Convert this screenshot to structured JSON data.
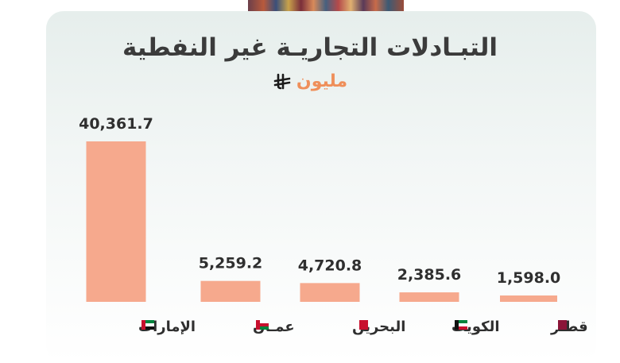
{
  "header": {
    "title": "التبـادلات التجاريـة غير النفطية",
    "unit": "مليون"
  },
  "icons": {
    "currency": "saudi-riyal-icon"
  },
  "colors": {
    "bar": "#f6a98d",
    "unit_text": "#ef8f5a",
    "title_text": "#3b3b3b"
  },
  "chart_data": {
    "type": "bar",
    "title": "التبـادلات التجاريـة غير النفطية",
    "ylabel": "",
    "xlabel": "",
    "categories": [
      "الإمارات",
      "عمـان",
      "البحرين",
      "الكويت",
      "قطـر"
    ],
    "values": [
      40361.7,
      5259.2,
      4720.8,
      2385.6,
      1598.0
    ],
    "value_labels": [
      "40,361.7",
      "5,259.2",
      "4,720.8",
      "2,385.6",
      "1,598.0"
    ],
    "flags": [
      "uae-flag-icon",
      "oman-flag-icon",
      "bahrain-flag-icon",
      "kuwait-flag-icon",
      "qatar-flag-icon"
    ],
    "ylim": [
      0,
      40361.7
    ],
    "grid": false
  }
}
